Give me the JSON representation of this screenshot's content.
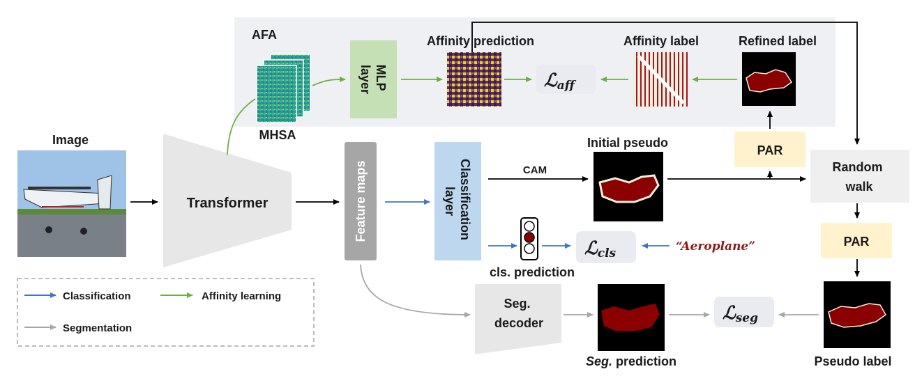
{
  "afa_label": "AFA",
  "mhsa_label": "MHSA",
  "image_label": "Image",
  "transformer_label": "Transformer",
  "mlp_label": [
    "MLP",
    "layer"
  ],
  "feature_maps_label": "Feature maps",
  "classification_layer_label": [
    "Classification",
    "layer"
  ],
  "affinity_prediction_label": "Affinity prediction",
  "affinity_label_label": "Affinity label",
  "refined_label_label": "Refined label",
  "loss_aff": {
    "main": "ℒ",
    "sub": "aff"
  },
  "loss_cls": {
    "main": "ℒ",
    "sub": "cls"
  },
  "loss_seg": {
    "main": "ℒ",
    "sub": "seg"
  },
  "cam_label": "CAM",
  "initial_pseudo_label": "Initial pseudo",
  "par_label": "PAR",
  "random_walk_label": [
    "Random",
    "walk"
  ],
  "cls_prediction_label": "cls. prediction",
  "aeroplane_text": "“Aeroplane”",
  "seg_decoder_label": [
    "Seg.",
    "decoder"
  ],
  "seg_prediction_label": {
    "italic": "Seg.",
    "rest": " prediction"
  },
  "pseudo_label_label": "Pseudo label",
  "legend": {
    "classification": "Classification",
    "affinity": "Affinity learning",
    "segmentation": "Segmentation"
  },
  "colors": {
    "classification_arrow": "#4472c4",
    "affinity_arrow": "#70ad47",
    "segmentation_arrow": "#a6a6a6",
    "afa_background": "#eef0f4",
    "mlp_fill": "#c5e0b4",
    "classification_fill": "#bdd7ee",
    "par_fill": "#fff2cc",
    "loss_fill": "#e9ebf0",
    "mask_red": "#8b0000",
    "aeroplane_red": "#8b1a1a"
  }
}
